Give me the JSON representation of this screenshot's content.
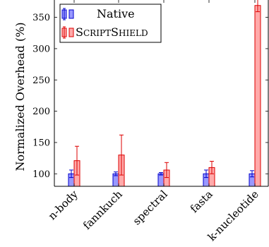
{
  "chart_data": {
    "type": "bar",
    "ylabel": "Normalized Overhead (%)",
    "ylim": [
      80,
      380
    ],
    "yticks": [
      100,
      150,
      200,
      250,
      300,
      350
    ],
    "categories": [
      "n-body",
      "fannkuch",
      "spectral",
      "fasta",
      "k-nucleotide"
    ],
    "series": [
      {
        "name": "Native",
        "values": [
          100,
          100,
          100,
          100,
          100
        ],
        "error": [
          6,
          3,
          2,
          6,
          5
        ],
        "fill": "#9999ff",
        "stroke": "#0000cc"
      },
      {
        "name": "ScriptShield",
        "values": [
          121,
          130,
          106,
          110,
          369
        ],
        "error": [
          23,
          32,
          12,
          10,
          10
        ],
        "fill": "#ffaaaa",
        "stroke": "#dd0000"
      }
    ],
    "legend_position": "top-left",
    "grid": false
  }
}
